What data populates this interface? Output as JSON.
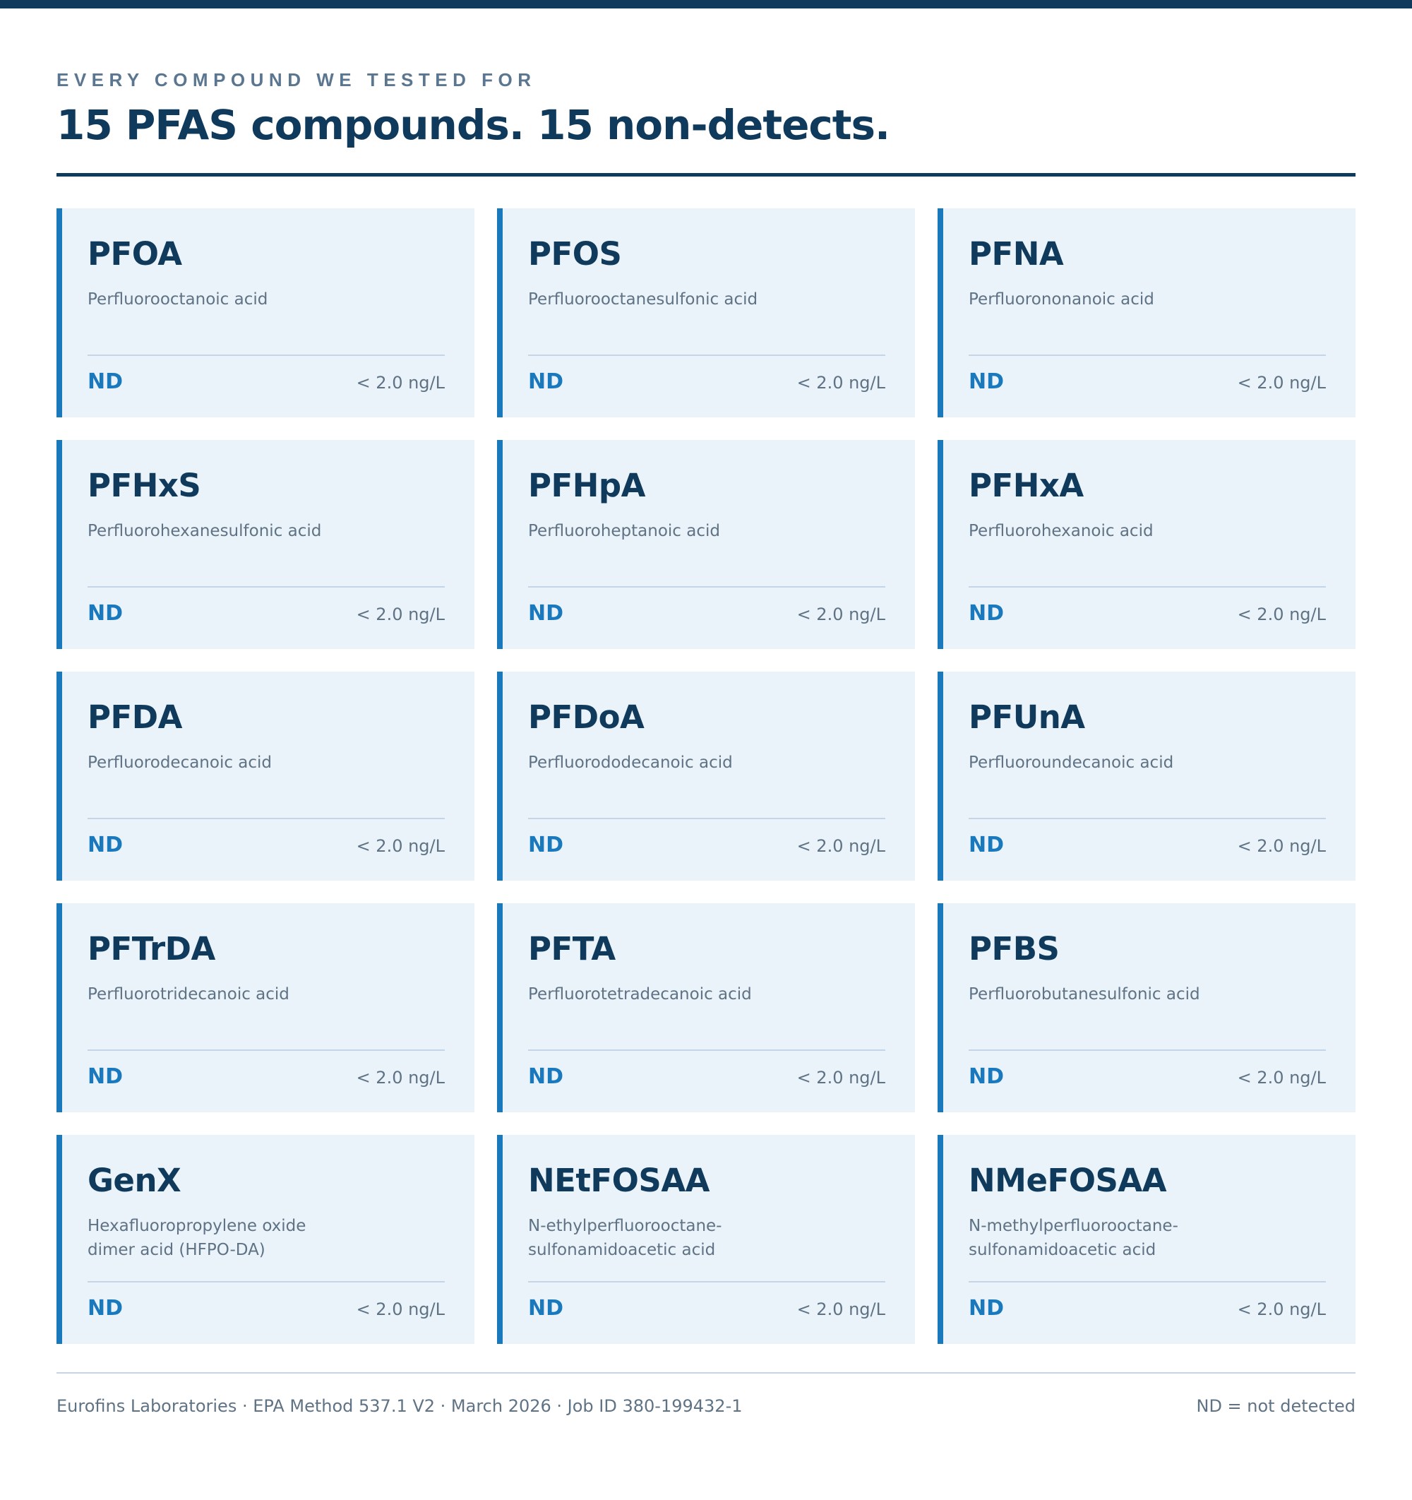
{
  "header": {
    "eyebrow": "EVERY COMPOUND WE TESTED FOR",
    "title": "15 PFAS compounds. 15 non-detects."
  },
  "colors": {
    "accent": "#1a78bd",
    "navy": "#0f3a5c",
    "card_bg": "#eaf2fa",
    "muted_text": "#5f7385"
  },
  "compounds": [
    {
      "abbr": "PFOA",
      "name": "Perfluorooctanoic acid",
      "result": "ND",
      "limit": "< 2.0 ng/L"
    },
    {
      "abbr": "PFOS",
      "name": "Perfluorooctanesulfonic acid",
      "result": "ND",
      "limit": "< 2.0 ng/L"
    },
    {
      "abbr": "PFNA",
      "name": "Perfluorononanoic acid",
      "result": "ND",
      "limit": "< 2.0 ng/L"
    },
    {
      "abbr": "PFHxS",
      "name": "Perfluorohexanesulfonic acid",
      "result": "ND",
      "limit": "< 2.0 ng/L"
    },
    {
      "abbr": "PFHpA",
      "name": "Perfluoroheptanoic acid",
      "result": "ND",
      "limit": "< 2.0 ng/L"
    },
    {
      "abbr": "PFHxA",
      "name": "Perfluorohexanoic acid",
      "result": "ND",
      "limit": "< 2.0 ng/L"
    },
    {
      "abbr": "PFDA",
      "name": "Perfluorodecanoic acid",
      "result": "ND",
      "limit": "< 2.0 ng/L"
    },
    {
      "abbr": "PFDoA",
      "name": "Perfluorododecanoic acid",
      "result": "ND",
      "limit": "< 2.0 ng/L"
    },
    {
      "abbr": "PFUnA",
      "name": "Perfluoroundecanoic acid",
      "result": "ND",
      "limit": "< 2.0 ng/L"
    },
    {
      "abbr": "PFTrDA",
      "name": "Perfluorotridecanoic acid",
      "result": "ND",
      "limit": "< 2.0 ng/L"
    },
    {
      "abbr": "PFTA",
      "name": "Perfluorotetradecanoic acid",
      "result": "ND",
      "limit": "< 2.0 ng/L"
    },
    {
      "abbr": "PFBS",
      "name": "Perfluorobutanesulfonic acid",
      "result": "ND",
      "limit": "< 2.0 ng/L"
    },
    {
      "abbr": "GenX",
      "name": "Hexafluoropropylene oxide\ndimer acid (HFPO-DA)",
      "result": "ND",
      "limit": "< 2.0 ng/L"
    },
    {
      "abbr": "NEtFOSAA",
      "name": "N-ethylperfluorooctane-\nsulfonamidoacetic acid",
      "result": "ND",
      "limit": "< 2.0 ng/L"
    },
    {
      "abbr": "NMeFOSAA",
      "name": "N-methylperfluorooctane-\nsulfonamidoacetic acid",
      "result": "ND",
      "limit": "< 2.0 ng/L"
    }
  ],
  "footer": {
    "source": "Eurofins Laboratories · EPA Method 537.1 V2 · March 2026 · Job ID 380-199432-1",
    "legend": "ND = not detected"
  }
}
